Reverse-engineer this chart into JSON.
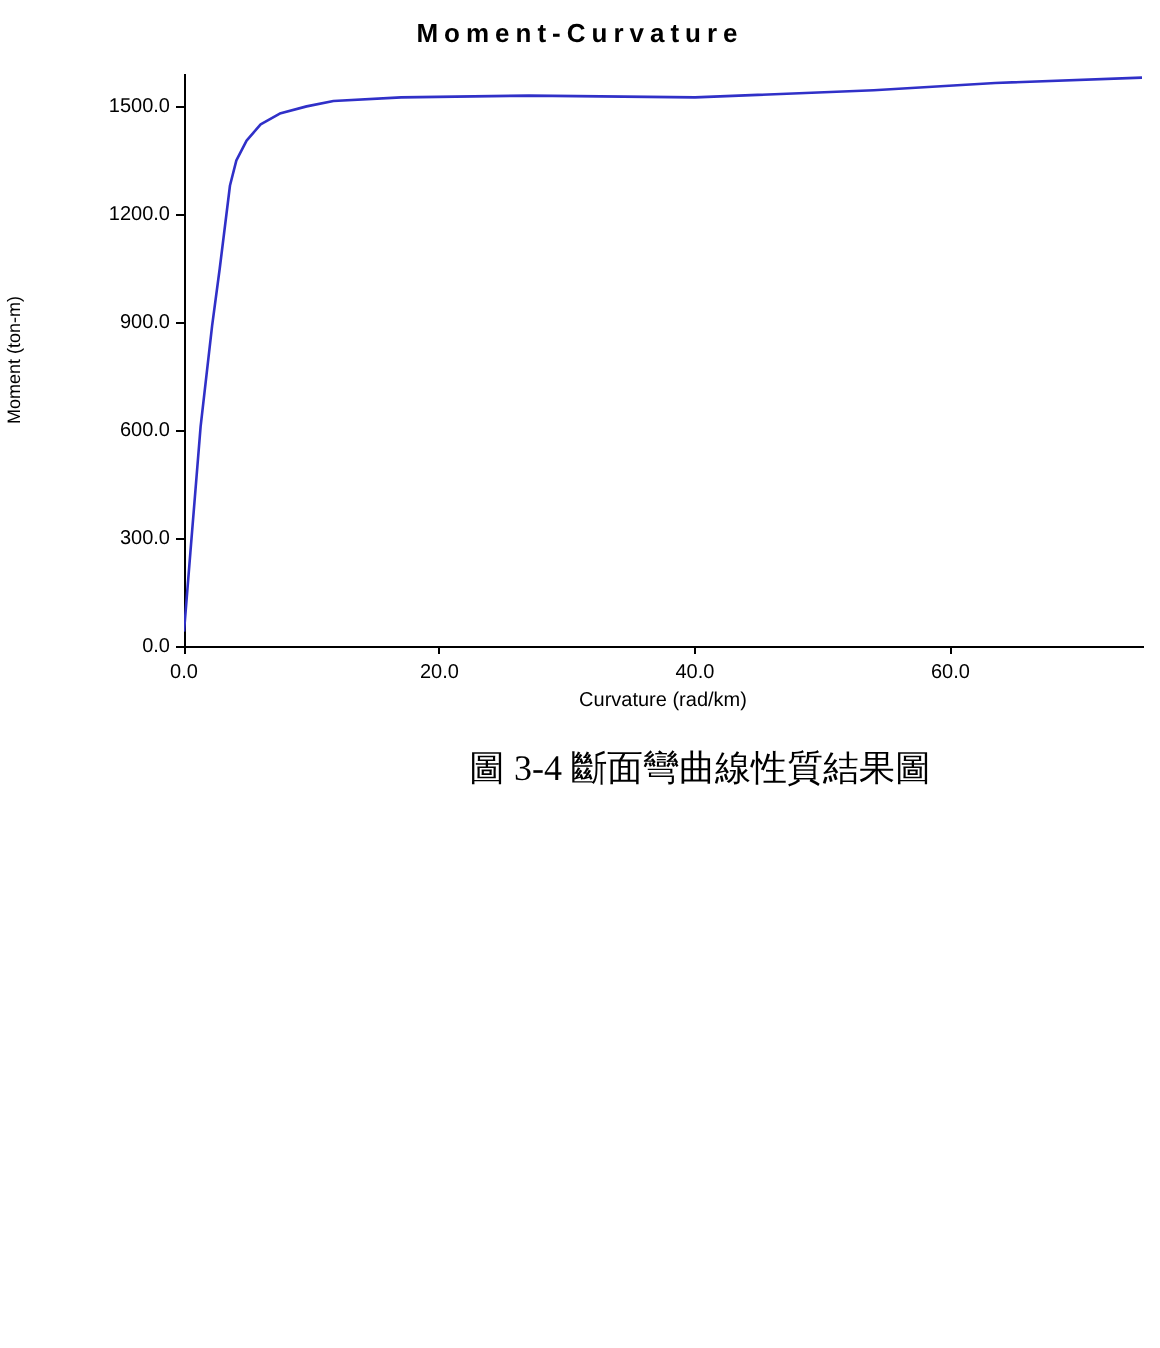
{
  "chart_data": {
    "type": "line",
    "title": "Moment-Curvature",
    "xlabel": "Curvature (rad/km)",
    "ylabel": "Moment (ton-m)",
    "annotations": [
      "圖 3-4 斷面彎曲線性質結果圖"
    ],
    "x": [
      0,
      0.5,
      1.3,
      2.2,
      2.8,
      3.6,
      4.1,
      4.9,
      6.0,
      7.5,
      9.6,
      11.7,
      17,
      27,
      40,
      54,
      63.5,
      75
    ],
    "series": [
      {
        "color": "#3030c8",
        "values": [
          40,
          260,
          610,
          890,
          1050,
          1280,
          1350,
          1405,
          1450,
          1480,
          1500,
          1515,
          1525,
          1530,
          1525,
          1545,
          1565,
          1580
        ]
      }
    ],
    "xlim": [
      0,
      75
    ],
    "ylim": [
      0,
      1590
    ],
    "xticks": [
      {
        "value": 0,
        "label": "0.0"
      },
      {
        "value": 20,
        "label": "20.0"
      },
      {
        "value": 40,
        "label": "40.0"
      },
      {
        "value": 60,
        "label": "60.0"
      }
    ],
    "yticks": [
      {
        "value": 0,
        "label": "0.0"
      },
      {
        "value": 300,
        "label": "300.0"
      },
      {
        "value": 600,
        "label": "600.0"
      },
      {
        "value": 900,
        "label": "900.0"
      },
      {
        "value": 1200,
        "label": "1200.0"
      },
      {
        "value": 1500,
        "label": "1500.0"
      }
    ],
    "marker": "none",
    "line_style": "solid"
  }
}
